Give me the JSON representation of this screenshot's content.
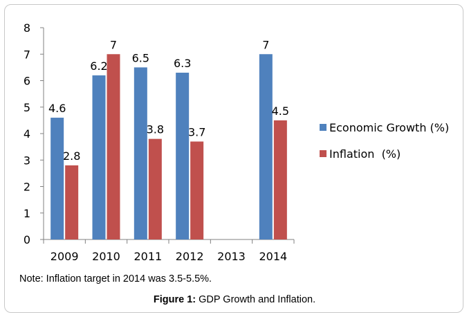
{
  "chart_data": {
    "type": "bar",
    "categories": [
      "2009",
      "2010",
      "2011",
      "2012",
      "2013",
      "2014"
    ],
    "series": [
      {
        "name": "Economic Growth (%)",
        "color": "#4f81bd",
        "values": [
          4.6,
          6.2,
          6.5,
          6.3,
          null,
          7
        ]
      },
      {
        "name": "Inflation  (%)",
        "color": "#c0504d",
        "values": [
          2.8,
          7,
          3.8,
          3.7,
          null,
          4.5
        ]
      }
    ],
    "ylim": [
      0,
      8
    ],
    "yticks": [
      0,
      1,
      2,
      3,
      4,
      5,
      6,
      7,
      8
    ],
    "grid": false,
    "legend": "right"
  },
  "note": "Note: Inflation target in 2014 was 3.5-5.5%.",
  "caption": {
    "label": "Figure 1:",
    "text": " GDP Growth and Inflation."
  }
}
